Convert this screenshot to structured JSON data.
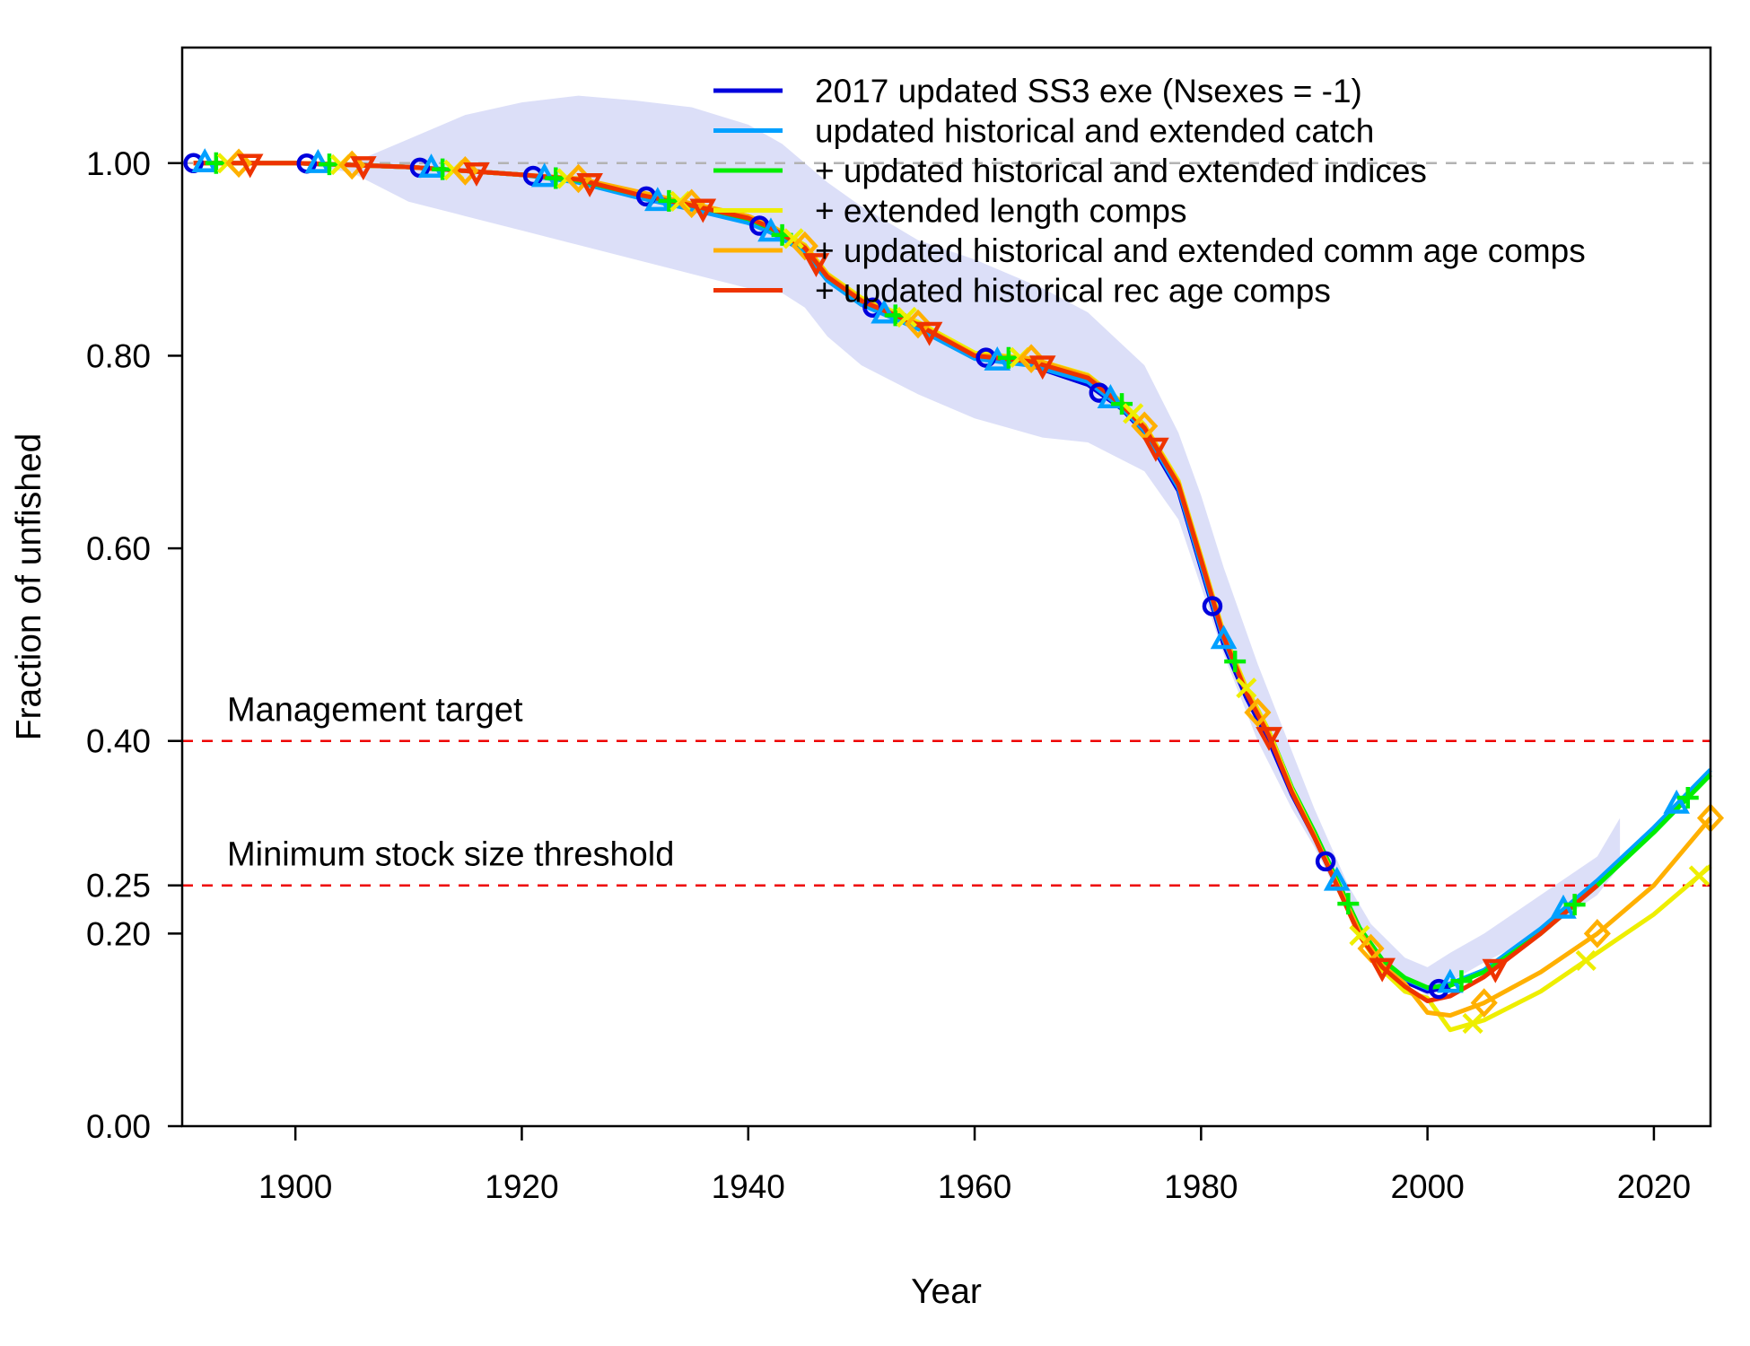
{
  "chart_data": {
    "type": "line",
    "xlabel": "Year",
    "ylabel": "Fraction of unfished",
    "xlim": [
      1890,
      2025
    ],
    "ylim": [
      0,
      1.12
    ],
    "x_ticks": [
      "1900",
      "1920",
      "1940",
      "1960",
      "1980",
      "2000",
      "2020"
    ],
    "y_ticks": [
      "0.00",
      "0.20",
      "0.25",
      "0.40",
      "0.60",
      "0.80",
      "1.00"
    ],
    "y_tick_values": [
      0,
      0.2,
      0.25,
      0.4,
      0.6,
      0.8,
      1.0
    ],
    "grid": false,
    "legend_position": "top-right",
    "reference_lines": [
      {
        "label": "",
        "y": 1.0,
        "color": "#b3b3b3"
      },
      {
        "label": "Management target",
        "y": 0.4,
        "color": "#ee0000"
      },
      {
        "label": "Minimum stock size threshold",
        "y": 0.25,
        "color": "#ee0000"
      }
    ],
    "uncertainty_band": {
      "color": "#dcdff8",
      "x": [
        1891,
        1900,
        1905,
        1910,
        1915,
        1920,
        1925,
        1930,
        1935,
        1940,
        1943,
        1945,
        1947,
        1950,
        1955,
        1960,
        1963,
        1966,
        1970,
        1975,
        1978,
        1980,
        1982,
        1985,
        1988,
        1990,
        1993,
        1995,
        1998,
        2000,
        2002,
        2005,
        2010,
        2015,
        2017
      ],
      "upper": [
        1.0,
        1.0,
        1.0,
        1.025,
        1.05,
        1.063,
        1.07,
        1.065,
        1.058,
        1.04,
        1.02,
        1.0,
        0.98,
        0.955,
        0.92,
        0.9,
        0.885,
        0.87,
        0.845,
        0.79,
        0.72,
        0.655,
        0.58,
        0.48,
        0.39,
        0.33,
        0.25,
        0.21,
        0.175,
        0.165,
        0.18,
        0.2,
        0.24,
        0.28,
        0.32
      ],
      "lower": [
        1.0,
        1.0,
        0.99,
        0.96,
        0.945,
        0.93,
        0.915,
        0.9,
        0.885,
        0.87,
        0.865,
        0.85,
        0.82,
        0.79,
        0.76,
        0.735,
        0.725,
        0.715,
        0.71,
        0.68,
        0.63,
        0.56,
        0.49,
        0.4,
        0.33,
        0.29,
        0.22,
        0.185,
        0.15,
        0.135,
        0.15,
        0.17,
        0.2,
        0.24,
        0.27
      ]
    },
    "x": [
      1891,
      1895,
      1900,
      1905,
      1910,
      1915,
      1920,
      1925,
      1930,
      1935,
      1940,
      1942,
      1945,
      1947,
      1950,
      1955,
      1960,
      1965,
      1970,
      1973,
      1975,
      1978,
      1980,
      1982,
      1984,
      1986,
      1988,
      1990,
      1992,
      1994,
      1996,
      1998,
      2000,
      2002,
      2005,
      2010,
      2015,
      2020,
      2025
    ],
    "series": [
      {
        "name": "2017 updated SS3 exe (Nsexes = -1)",
        "color": "#0000dd",
        "marker": "circle",
        "marker_phase": 1,
        "values": [
          1.0,
          1.0,
          1.0,
          0.998,
          0.996,
          0.992,
          0.988,
          0.982,
          0.968,
          0.955,
          0.94,
          0.93,
          0.91,
          0.88,
          0.855,
          0.83,
          0.8,
          0.79,
          0.77,
          0.745,
          0.72,
          0.66,
          0.58,
          0.5,
          0.445,
          0.4,
          0.345,
          0.3,
          0.25,
          0.2,
          0.17,
          0.15,
          0.14,
          0.145,
          null,
          null,
          null,
          null,
          null
        ]
      },
      {
        "name": "updated historical and extended catch",
        "color": "#00a0ff",
        "marker": "triangle-up",
        "marker_phase": 2,
        "values": [
          1.0,
          1.0,
          1.0,
          0.998,
          0.996,
          0.992,
          0.988,
          0.98,
          0.965,
          0.952,
          0.938,
          0.928,
          0.908,
          0.878,
          0.853,
          0.828,
          0.797,
          0.79,
          0.773,
          0.746,
          0.722,
          0.663,
          0.583,
          0.505,
          0.45,
          0.405,
          0.35,
          0.303,
          0.254,
          0.204,
          0.172,
          0.153,
          0.143,
          0.148,
          0.162,
          0.205,
          0.255,
          0.31,
          0.37
        ]
      },
      {
        "name": "+ updated historical and extended indices",
        "color": "#00ee00",
        "marker": "plus",
        "marker_phase": 3,
        "values": [
          1.0,
          1.0,
          1.0,
          0.998,
          0.996,
          0.992,
          0.988,
          0.982,
          0.968,
          0.956,
          0.942,
          0.932,
          0.912,
          0.882,
          0.857,
          0.832,
          0.802,
          0.795,
          0.778,
          0.75,
          0.726,
          0.668,
          0.59,
          0.51,
          0.455,
          0.41,
          0.352,
          0.306,
          0.256,
          0.206,
          0.173,
          0.154,
          0.144,
          0.146,
          0.16,
          0.2,
          0.25,
          0.305,
          0.365
        ]
      },
      {
        "name": "+ extended length comps",
        "color": "#eeee00",
        "marker": "cross",
        "marker_phase": 4,
        "values": [
          1.0,
          1.0,
          1.0,
          0.998,
          0.996,
          0.992,
          0.988,
          0.983,
          0.97,
          0.958,
          0.945,
          0.935,
          0.915,
          0.885,
          0.86,
          0.835,
          0.803,
          0.797,
          0.78,
          0.752,
          0.728,
          0.67,
          0.592,
          0.512,
          0.455,
          0.41,
          0.35,
          0.302,
          0.25,
          0.198,
          0.162,
          0.14,
          0.133,
          0.1,
          0.11,
          0.14,
          0.18,
          0.22,
          0.27
        ]
      },
      {
        "name": "+ updated historical and extended comm age comps",
        "color": "#ffb000",
        "marker": "diamond",
        "marker_phase": 5,
        "values": [
          1.0,
          1.0,
          1.0,
          0.998,
          0.996,
          0.992,
          0.988,
          0.984,
          0.971,
          0.958,
          0.945,
          0.935,
          0.914,
          0.884,
          0.858,
          0.833,
          0.801,
          0.797,
          0.779,
          0.751,
          0.727,
          0.668,
          0.59,
          0.51,
          0.452,
          0.407,
          0.348,
          0.302,
          0.252,
          0.202,
          0.167,
          0.148,
          0.118,
          0.115,
          0.128,
          0.16,
          0.2,
          0.25,
          0.32
        ]
      },
      {
        "name": "+ updated historical rec age comps",
        "color": "#ee3300",
        "marker": "triangle-down",
        "marker_phase": 6,
        "values": [
          1.0,
          1.0,
          1.0,
          0.998,
          0.996,
          0.992,
          0.988,
          0.983,
          0.968,
          0.956,
          0.943,
          0.933,
          0.912,
          0.882,
          0.857,
          0.832,
          0.8,
          0.794,
          0.777,
          0.749,
          0.725,
          0.666,
          0.588,
          0.508,
          0.45,
          0.405,
          0.347,
          0.3,
          0.25,
          0.198,
          0.165,
          0.145,
          0.13,
          0.135,
          0.155,
          0.2,
          0.25,
          null,
          null
        ]
      }
    ]
  }
}
